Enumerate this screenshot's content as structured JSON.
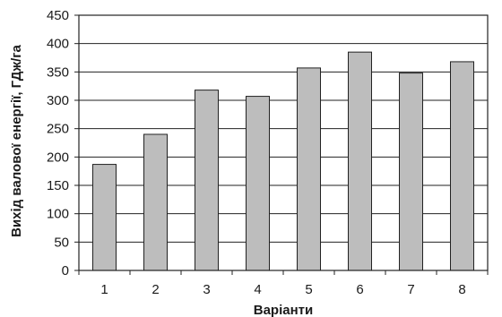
{
  "chart_data": {
    "type": "bar",
    "categories": [
      "1",
      "2",
      "3",
      "4",
      "5",
      "6",
      "7",
      "8"
    ],
    "values": [
      187,
      240,
      318,
      307,
      357,
      385,
      348,
      368
    ],
    "xlabel": "Варіанти",
    "ylabel": "Вихід валової енергії, ГДж/га",
    "ylim": [
      0,
      450
    ],
    "yticks": [
      0,
      50,
      100,
      150,
      200,
      250,
      300,
      350,
      400,
      450
    ],
    "grid": true,
    "bar_color": "#bdbdbd",
    "bar_edge_color": "#222222"
  }
}
